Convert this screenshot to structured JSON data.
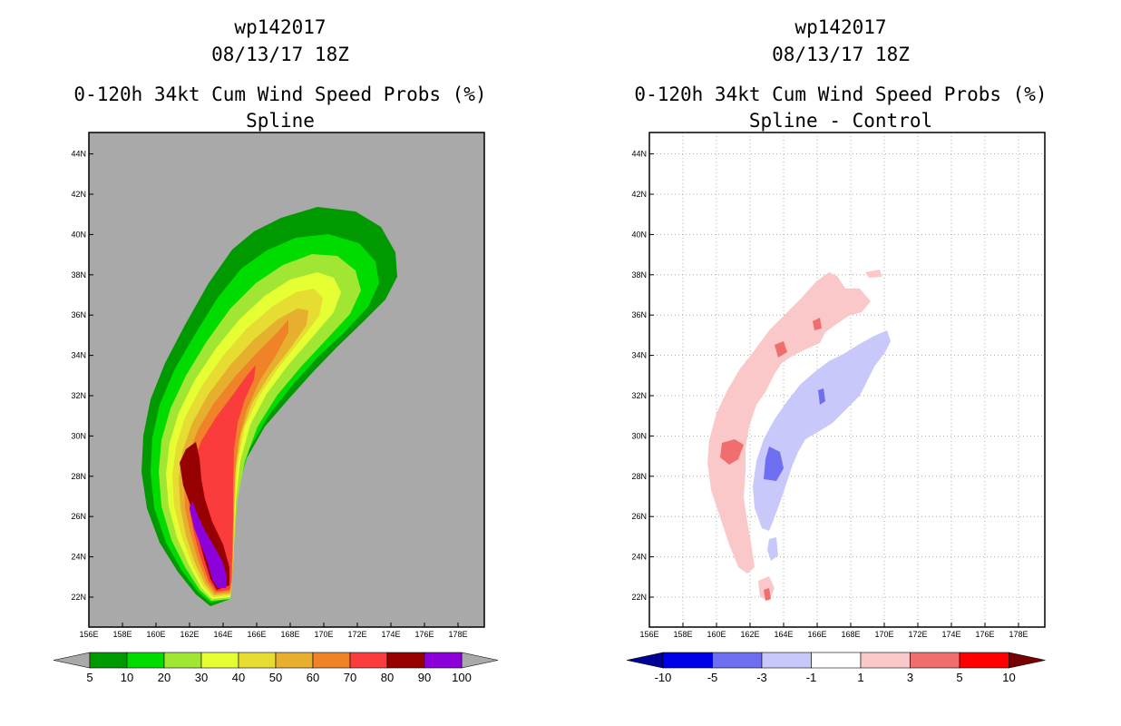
{
  "chart_data": [
    {
      "type": "contour-map",
      "storm_id": "wp142017",
      "date": "08/13/17 18Z",
      "title": "0-120h 34kt Cum Wind Speed Probs (%)",
      "subtitle": "Spline",
      "x_ticks": [
        "156E",
        "158E",
        "160E",
        "162E",
        "164E",
        "166E",
        "168E",
        "170E",
        "172E",
        "174E",
        "176E",
        "178E"
      ],
      "y_ticks": [
        "22N",
        "24N",
        "26N",
        "28N",
        "30N",
        "32N",
        "34N",
        "36N",
        "38N",
        "40N",
        "42N",
        "44N"
      ],
      "background": "#a9a9a9",
      "colorbar": {
        "labels": [
          "5",
          "10",
          "20",
          "30",
          "40",
          "50",
          "60",
          "70",
          "80",
          "90",
          "100"
        ],
        "colors": [
          "#009a00",
          "#00dc00",
          "#a0e632",
          "#e6ff32",
          "#e6dc32",
          "#e6af2d",
          "#f08228",
          "#fa3c3c",
          "#960000",
          "#8c00dc"
        ],
        "end_colors": [
          "#a9a9a9",
          "#a9a9a9"
        ]
      },
      "levels": [
        {
          "label": "5",
          "color": "#009a00"
        },
        {
          "label": "10",
          "color": "#00dc00"
        },
        {
          "label": "20",
          "color": "#a0e632"
        },
        {
          "label": "30",
          "color": "#e6ff32"
        },
        {
          "label": "40",
          "color": "#e6dc32"
        },
        {
          "label": "50",
          "color": "#e6af2d"
        },
        {
          "label": "60",
          "color": "#f08228"
        },
        {
          "label": "70",
          "color": "#fa3c3c"
        },
        {
          "label": "80",
          "color": "#960000"
        },
        {
          "label": "90",
          "color": "#8c00dc"
        }
      ]
    },
    {
      "type": "contour-map",
      "storm_id": "wp142017",
      "date": "08/13/17 18Z",
      "title": "0-120h 34kt Cum Wind Speed Probs (%)",
      "subtitle": "Spline - Control",
      "x_ticks": [
        "156E",
        "158E",
        "160E",
        "162E",
        "164E",
        "166E",
        "168E",
        "170E",
        "172E",
        "174E",
        "176E",
        "178E"
      ],
      "y_ticks": [
        "22N",
        "24N",
        "26N",
        "28N",
        "30N",
        "32N",
        "34N",
        "36N",
        "38N",
        "40N",
        "42N",
        "44N"
      ],
      "background": "#ffffff",
      "grid": true,
      "colorbar": {
        "labels": [
          "-10",
          "-5",
          "-3",
          "-1",
          "1",
          "3",
          "5",
          "10"
        ],
        "colors": [
          "#0000e6",
          "#6e6ef0",
          "#c8c8fa",
          "#ffffff",
          "#fac8c8",
          "#f06e6e",
          "#ff0000"
        ],
        "end_colors": [
          "#000096",
          "#780000"
        ]
      },
      "positive_colors": {
        "light": "#fac8c8",
        "medium": "#f06e6e"
      },
      "negative_colors": {
        "light": "#c8c8fa",
        "medium": "#6e6ef0"
      }
    }
  ]
}
